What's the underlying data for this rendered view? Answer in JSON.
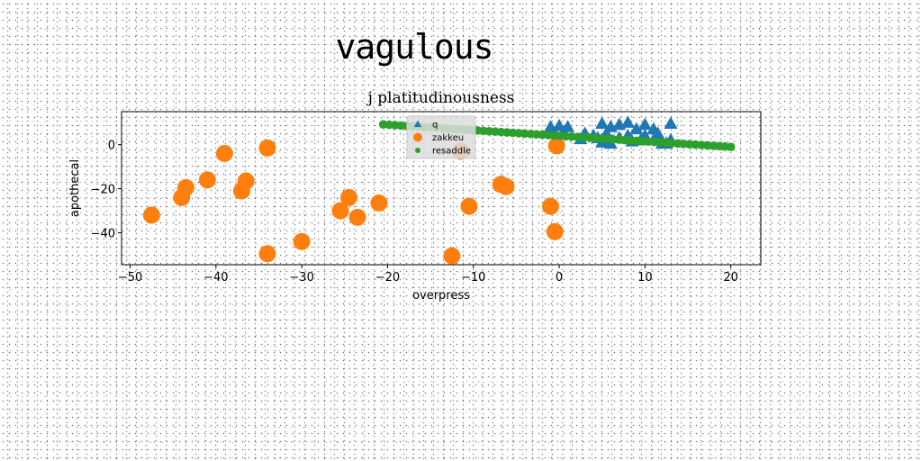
{
  "suptitle": "vagulous",
  "chart_data": {
    "type": "scatter",
    "title": "j platitudinousness",
    "xlabel": "overpress",
    "ylabel": "apothecal",
    "xlim": [
      -51,
      23.5
    ],
    "ylim": [
      -54.5,
      15
    ],
    "xticks": [
      -50,
      -40,
      -30,
      -20,
      -10,
      0,
      10,
      20
    ],
    "yticks": [
      0,
      -20,
      -40
    ],
    "grid": false,
    "legend_position": "upper-center",
    "series": [
      {
        "name": "q",
        "marker": "triangle",
        "color": "#1f77b4",
        "points": [
          [
            -1,
            8
          ],
          [
            0,
            8.5
          ],
          [
            1,
            8
          ],
          [
            -0.5,
            5
          ],
          [
            0.5,
            5.5
          ],
          [
            3,
            5
          ],
          [
            2.5,
            2.5
          ],
          [
            5,
            9.5
          ],
          [
            6,
            8
          ],
          [
            7,
            9
          ],
          [
            8,
            10
          ],
          [
            9,
            7
          ],
          [
            10,
            9
          ],
          [
            11,
            7
          ],
          [
            13,
            9.5
          ],
          [
            4.5,
            3
          ],
          [
            5,
            1
          ],
          [
            6,
            0.5
          ],
          [
            7,
            3
          ],
          [
            8,
            4
          ],
          [
            9.5,
            2
          ],
          [
            10,
            4
          ],
          [
            11,
            2
          ],
          [
            12,
            0.5
          ],
          [
            13,
            2
          ],
          [
            4,
            4
          ],
          [
            5.5,
            5
          ],
          [
            8.5,
            1.5
          ],
          [
            11.5,
            5
          ],
          [
            12.5,
            0.5
          ]
        ]
      },
      {
        "name": "zakkeu",
        "marker": "circle",
        "color": "#ff7f0e",
        "points": [
          [
            -47.5,
            -32
          ],
          [
            -44,
            -24
          ],
          [
            -43.5,
            -19.5
          ],
          [
            -41,
            -16
          ],
          [
            -39,
            -4
          ],
          [
            -37,
            -21
          ],
          [
            -36.5,
            -16.5
          ],
          [
            -34,
            -1.5
          ],
          [
            -34,
            -49.5
          ],
          [
            -30,
            -44
          ],
          [
            -25.5,
            -30
          ],
          [
            -24.5,
            -24
          ],
          [
            -23.5,
            -33
          ],
          [
            -21,
            -26.5
          ],
          [
            -12.5,
            -50.5
          ],
          [
            -11.5,
            -3
          ],
          [
            -10.5,
            -28
          ],
          [
            -6.8,
            -18
          ],
          [
            -6.2,
            -19
          ],
          [
            -1,
            -28
          ],
          [
            -0.5,
            -39.5
          ],
          [
            -0.3,
            -0.5
          ]
        ]
      },
      {
        "name": "resaddle",
        "marker": "circle-small",
        "color": "#2ca02c",
        "line": {
          "x_start": -20.5,
          "x_end": 20,
          "y_start": 9.2,
          "y_end": -1,
          "count": 60
        }
      }
    ]
  }
}
